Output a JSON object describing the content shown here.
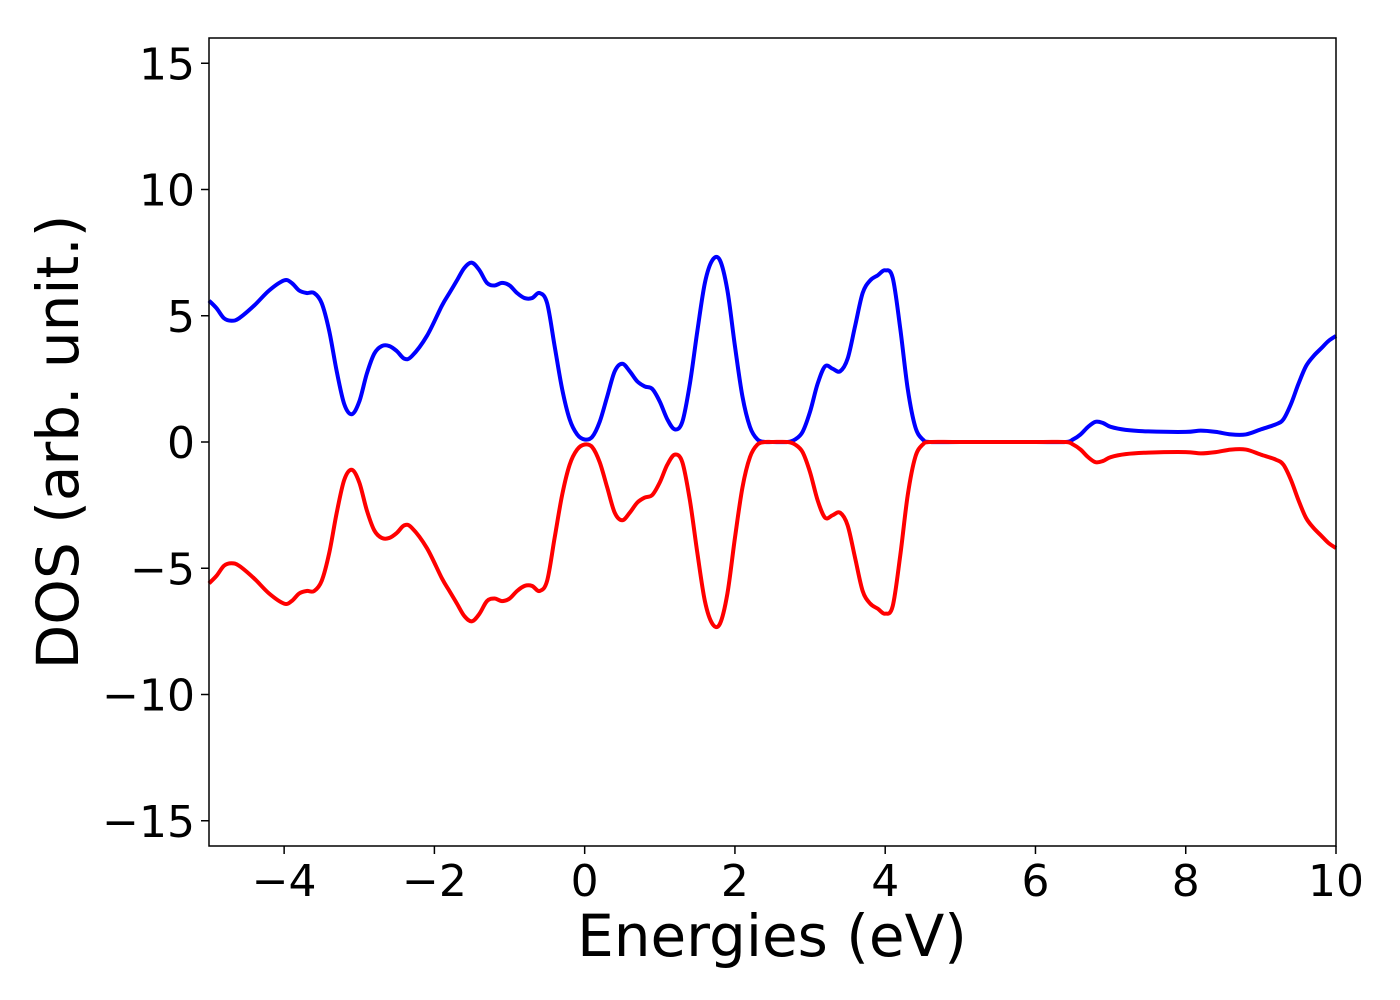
{
  "chart_data": {
    "type": "line",
    "title": "",
    "xlabel": "Energies (eV)",
    "ylabel": "DOS (arb. unit.)",
    "xlim": [
      -5,
      10
    ],
    "ylim": [
      -16,
      16
    ],
    "xticks": [
      -4,
      -2,
      0,
      2,
      4,
      6,
      8,
      10
    ],
    "xtick_labels": [
      "−4",
      "−2",
      "0",
      "2",
      "4",
      "6",
      "8",
      "10"
    ],
    "yticks": [
      15,
      10,
      5,
      0,
      -5,
      -10,
      -15
    ],
    "ytick_labels": [
      "15",
      "10",
      "5",
      "0",
      "−5",
      "−10",
      "−15"
    ],
    "grid": false,
    "legend": false,
    "series": [
      {
        "color": "#0000ff",
        "points": [
          [
            -5.0,
            5.6
          ],
          [
            -4.9,
            5.3
          ],
          [
            -4.8,
            4.9
          ],
          [
            -4.7,
            4.8
          ],
          [
            -4.6,
            4.9
          ],
          [
            -4.4,
            5.4
          ],
          [
            -4.2,
            6.0
          ],
          [
            -4.0,
            6.4
          ],
          [
            -3.9,
            6.3
          ],
          [
            -3.8,
            6.0
          ],
          [
            -3.7,
            5.9
          ],
          [
            -3.6,
            5.9
          ],
          [
            -3.5,
            5.5
          ],
          [
            -3.4,
            4.4
          ],
          [
            -3.3,
            2.8
          ],
          [
            -3.2,
            1.5
          ],
          [
            -3.1,
            1.1
          ],
          [
            -3.0,
            1.6
          ],
          [
            -2.9,
            2.7
          ],
          [
            -2.8,
            3.5
          ],
          [
            -2.7,
            3.8
          ],
          [
            -2.6,
            3.8
          ],
          [
            -2.5,
            3.6
          ],
          [
            -2.4,
            3.3
          ],
          [
            -2.3,
            3.4
          ],
          [
            -2.1,
            4.2
          ],
          [
            -1.9,
            5.4
          ],
          [
            -1.8,
            5.9
          ],
          [
            -1.7,
            6.4
          ],
          [
            -1.6,
            6.9
          ],
          [
            -1.5,
            7.1
          ],
          [
            -1.4,
            6.8
          ],
          [
            -1.3,
            6.3
          ],
          [
            -1.2,
            6.2
          ],
          [
            -1.1,
            6.3
          ],
          [
            -1.0,
            6.2
          ],
          [
            -0.9,
            5.9
          ],
          [
            -0.8,
            5.7
          ],
          [
            -0.7,
            5.7
          ],
          [
            -0.6,
            5.9
          ],
          [
            -0.5,
            5.5
          ],
          [
            -0.4,
            3.8
          ],
          [
            -0.3,
            2.1
          ],
          [
            -0.2,
            0.9
          ],
          [
            -0.1,
            0.3
          ],
          [
            0.0,
            0.1
          ],
          [
            0.1,
            0.2
          ],
          [
            0.2,
            0.8
          ],
          [
            0.3,
            1.8
          ],
          [
            0.4,
            2.8
          ],
          [
            0.5,
            3.1
          ],
          [
            0.6,
            2.8
          ],
          [
            0.7,
            2.4
          ],
          [
            0.8,
            2.2
          ],
          [
            0.9,
            2.1
          ],
          [
            1.0,
            1.6
          ],
          [
            1.1,
            0.9
          ],
          [
            1.2,
            0.5
          ],
          [
            1.3,
            0.8
          ],
          [
            1.4,
            2.3
          ],
          [
            1.5,
            4.4
          ],
          [
            1.6,
            6.3
          ],
          [
            1.7,
            7.2
          ],
          [
            1.8,
            7.2
          ],
          [
            1.9,
            6.0
          ],
          [
            2.0,
            3.8
          ],
          [
            2.1,
            1.8
          ],
          [
            2.2,
            0.6
          ],
          [
            2.3,
            0.1
          ],
          [
            2.4,
            0.0
          ],
          [
            2.5,
            0.0
          ],
          [
            2.7,
            0.0
          ],
          [
            2.8,
            0.1
          ],
          [
            2.9,
            0.4
          ],
          [
            3.0,
            1.2
          ],
          [
            3.1,
            2.3
          ],
          [
            3.2,
            3.0
          ],
          [
            3.3,
            2.9
          ],
          [
            3.4,
            2.8
          ],
          [
            3.5,
            3.3
          ],
          [
            3.6,
            4.6
          ],
          [
            3.7,
            5.9
          ],
          [
            3.8,
            6.4
          ],
          [
            3.9,
            6.6
          ],
          [
            4.0,
            6.8
          ],
          [
            4.1,
            6.5
          ],
          [
            4.2,
            4.5
          ],
          [
            4.3,
            2.1
          ],
          [
            4.4,
            0.6
          ],
          [
            4.5,
            0.1
          ],
          [
            4.6,
            0.0
          ],
          [
            5.0,
            0.0
          ],
          [
            6.0,
            0.0
          ],
          [
            6.4,
            0.0
          ],
          [
            6.5,
            0.1
          ],
          [
            6.6,
            0.3
          ],
          [
            6.7,
            0.6
          ],
          [
            6.8,
            0.8
          ],
          [
            6.9,
            0.75
          ],
          [
            7.0,
            0.6
          ],
          [
            7.2,
            0.48
          ],
          [
            7.5,
            0.42
          ],
          [
            8.0,
            0.4
          ],
          [
            8.2,
            0.45
          ],
          [
            8.4,
            0.4
          ],
          [
            8.6,
            0.3
          ],
          [
            8.8,
            0.3
          ],
          [
            9.0,
            0.5
          ],
          [
            9.2,
            0.7
          ],
          [
            9.3,
            0.9
          ],
          [
            9.4,
            1.5
          ],
          [
            9.5,
            2.3
          ],
          [
            9.6,
            3.0
          ],
          [
            9.7,
            3.4
          ],
          [
            9.8,
            3.7
          ],
          [
            9.9,
            4.0
          ],
          [
            10.0,
            4.2
          ]
        ]
      },
      {
        "color": "#ff0000",
        "points": [
          [
            -5.0,
            -5.6
          ],
          [
            -4.9,
            -5.3
          ],
          [
            -4.8,
            -4.9
          ],
          [
            -4.7,
            -4.8
          ],
          [
            -4.6,
            -4.9
          ],
          [
            -4.4,
            -5.4
          ],
          [
            -4.2,
            -6.0
          ],
          [
            -4.0,
            -6.4
          ],
          [
            -3.9,
            -6.3
          ],
          [
            -3.8,
            -6.0
          ],
          [
            -3.7,
            -5.9
          ],
          [
            -3.6,
            -5.9
          ],
          [
            -3.5,
            -5.5
          ],
          [
            -3.4,
            -4.4
          ],
          [
            -3.3,
            -2.8
          ],
          [
            -3.2,
            -1.5
          ],
          [
            -3.1,
            -1.1
          ],
          [
            -3.0,
            -1.6
          ],
          [
            -2.9,
            -2.7
          ],
          [
            -2.8,
            -3.5
          ],
          [
            -2.7,
            -3.8
          ],
          [
            -2.6,
            -3.8
          ],
          [
            -2.5,
            -3.6
          ],
          [
            -2.4,
            -3.3
          ],
          [
            -2.3,
            -3.4
          ],
          [
            -2.1,
            -4.2
          ],
          [
            -1.9,
            -5.4
          ],
          [
            -1.8,
            -5.9
          ],
          [
            -1.7,
            -6.4
          ],
          [
            -1.6,
            -6.9
          ],
          [
            -1.5,
            -7.1
          ],
          [
            -1.4,
            -6.8
          ],
          [
            -1.3,
            -6.3
          ],
          [
            -1.2,
            -6.2
          ],
          [
            -1.1,
            -6.3
          ],
          [
            -1.0,
            -6.2
          ],
          [
            -0.9,
            -5.9
          ],
          [
            -0.8,
            -5.7
          ],
          [
            -0.7,
            -5.7
          ],
          [
            -0.6,
            -5.9
          ],
          [
            -0.5,
            -5.5
          ],
          [
            -0.4,
            -3.8
          ],
          [
            -0.3,
            -2.1
          ],
          [
            -0.2,
            -0.9
          ],
          [
            -0.1,
            -0.3
          ],
          [
            0.0,
            -0.1
          ],
          [
            0.1,
            -0.2
          ],
          [
            0.2,
            -0.8
          ],
          [
            0.3,
            -1.8
          ],
          [
            0.4,
            -2.8
          ],
          [
            0.5,
            -3.1
          ],
          [
            0.6,
            -2.8
          ],
          [
            0.7,
            -2.4
          ],
          [
            0.8,
            -2.2
          ],
          [
            0.9,
            -2.1
          ],
          [
            1.0,
            -1.6
          ],
          [
            1.1,
            -0.9
          ],
          [
            1.2,
            -0.5
          ],
          [
            1.3,
            -0.8
          ],
          [
            1.4,
            -2.3
          ],
          [
            1.5,
            -4.4
          ],
          [
            1.6,
            -6.3
          ],
          [
            1.7,
            -7.2
          ],
          [
            1.8,
            -7.2
          ],
          [
            1.9,
            -6.0
          ],
          [
            2.0,
            -3.8
          ],
          [
            2.1,
            -1.8
          ],
          [
            2.2,
            -0.6
          ],
          [
            2.3,
            -0.1
          ],
          [
            2.4,
            0.0
          ],
          [
            2.5,
            0.0
          ],
          [
            2.7,
            0.0
          ],
          [
            2.8,
            -0.1
          ],
          [
            2.9,
            -0.4
          ],
          [
            3.0,
            -1.2
          ],
          [
            3.1,
            -2.3
          ],
          [
            3.2,
            -3.0
          ],
          [
            3.3,
            -2.9
          ],
          [
            3.4,
            -2.8
          ],
          [
            3.5,
            -3.3
          ],
          [
            3.6,
            -4.6
          ],
          [
            3.7,
            -5.9
          ],
          [
            3.8,
            -6.4
          ],
          [
            3.9,
            -6.6
          ],
          [
            4.0,
            -6.8
          ],
          [
            4.1,
            -6.5
          ],
          [
            4.2,
            -4.5
          ],
          [
            4.3,
            -2.1
          ],
          [
            4.4,
            -0.6
          ],
          [
            4.5,
            -0.1
          ],
          [
            4.6,
            0.0
          ],
          [
            5.0,
            0.0
          ],
          [
            6.0,
            0.0
          ],
          [
            6.4,
            0.0
          ],
          [
            6.5,
            -0.1
          ],
          [
            6.6,
            -0.3
          ],
          [
            6.7,
            -0.6
          ],
          [
            6.8,
            -0.8
          ],
          [
            6.9,
            -0.75
          ],
          [
            7.0,
            -0.6
          ],
          [
            7.2,
            -0.48
          ],
          [
            7.5,
            -0.42
          ],
          [
            8.0,
            -0.4
          ],
          [
            8.2,
            -0.45
          ],
          [
            8.4,
            -0.4
          ],
          [
            8.6,
            -0.3
          ],
          [
            8.8,
            -0.3
          ],
          [
            9.0,
            -0.5
          ],
          [
            9.2,
            -0.7
          ],
          [
            9.3,
            -0.9
          ],
          [
            9.4,
            -1.5
          ],
          [
            9.5,
            -2.3
          ],
          [
            9.6,
            -3.0
          ],
          [
            9.7,
            -3.4
          ],
          [
            9.8,
            -3.7
          ],
          [
            9.9,
            -4.0
          ],
          [
            10.0,
            -4.2
          ]
        ]
      }
    ]
  }
}
